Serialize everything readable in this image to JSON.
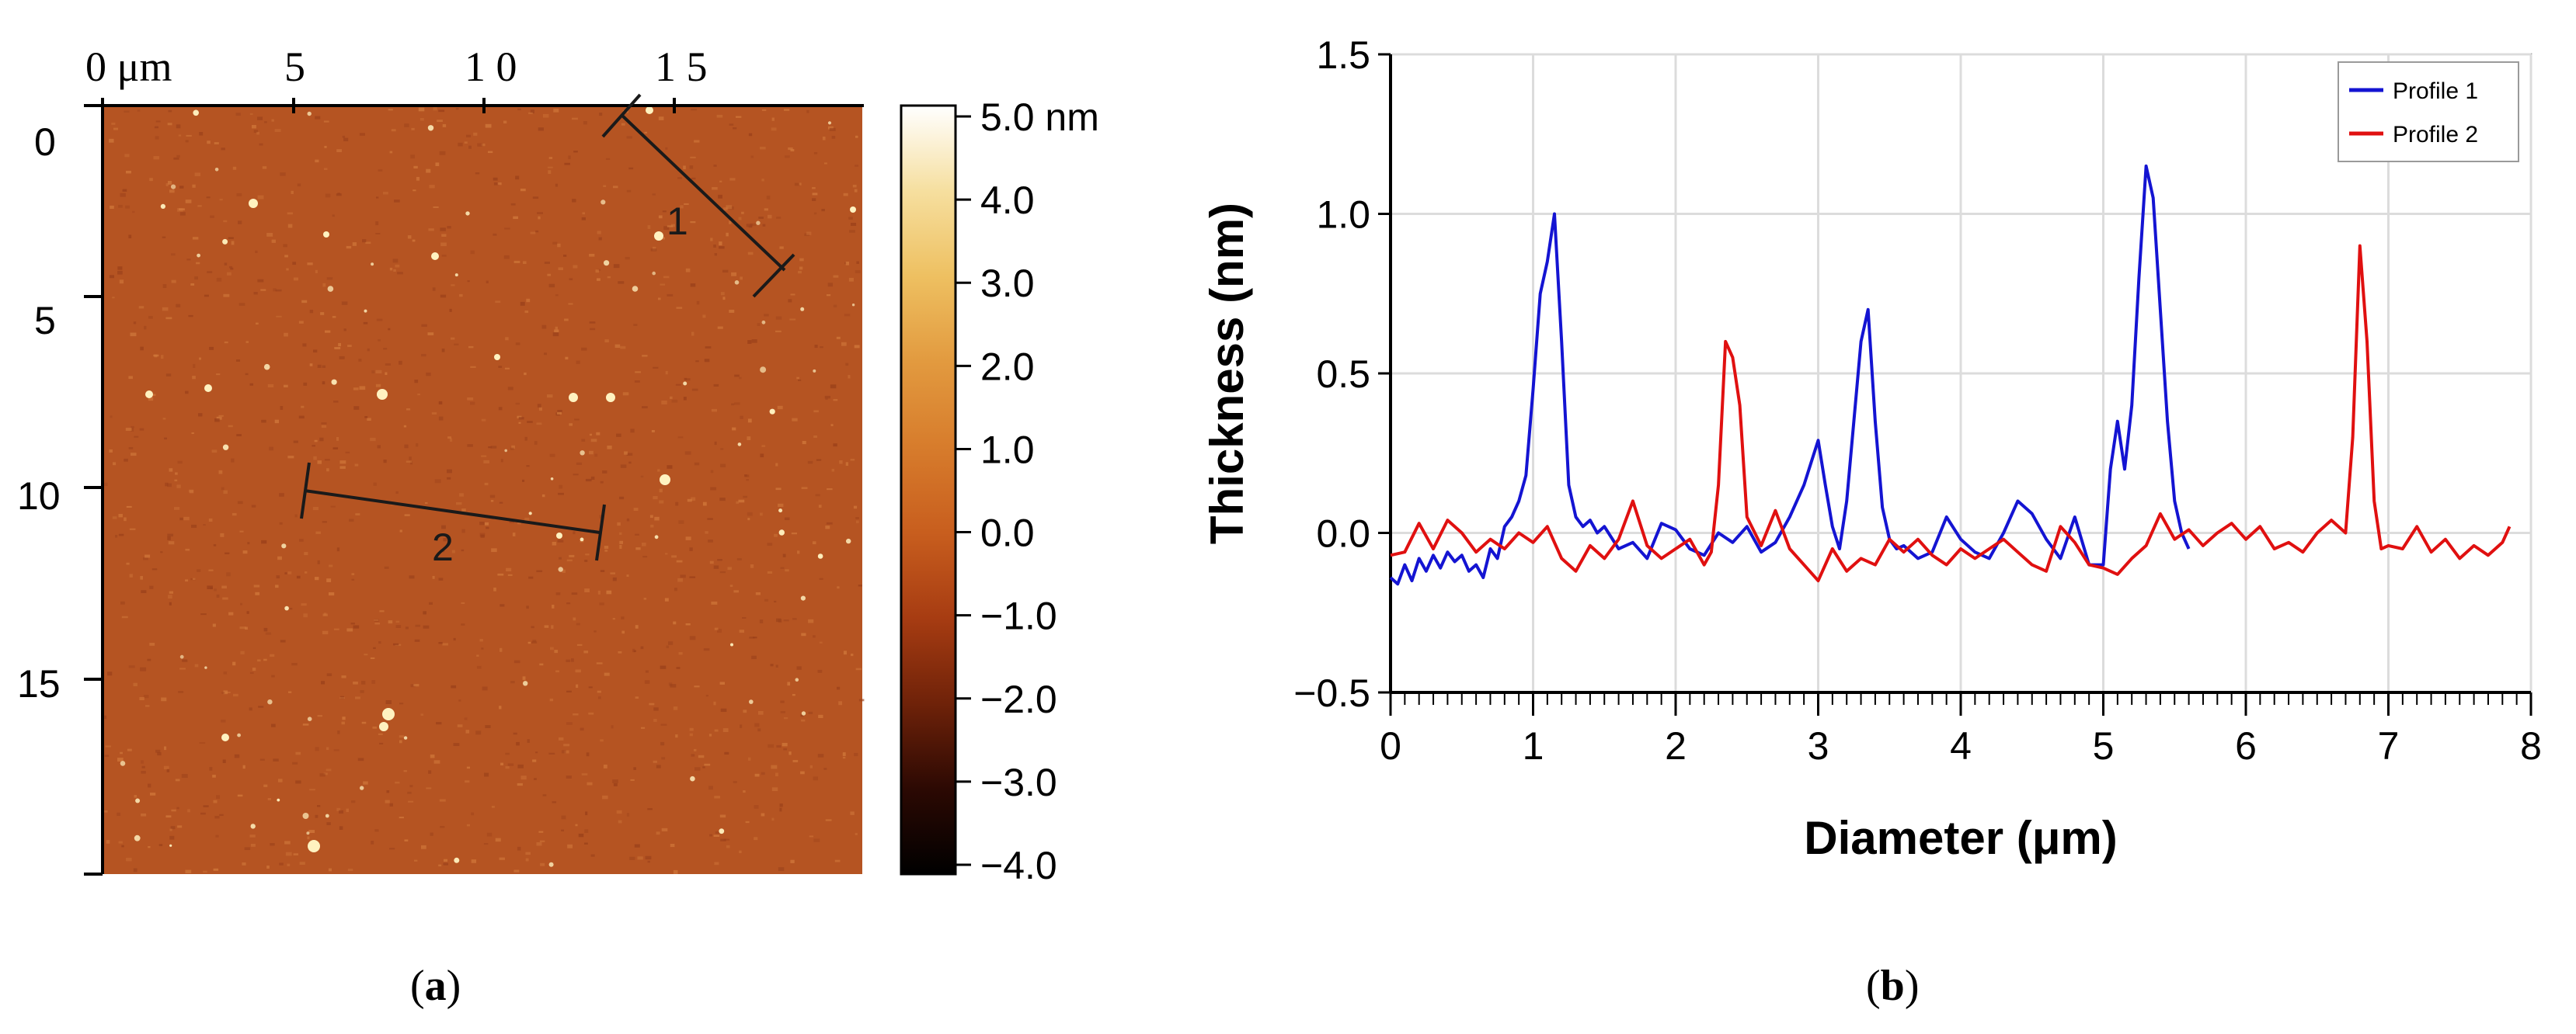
{
  "panel_a": {
    "top_axis_labels": [
      "0 μm",
      "5",
      "1 0",
      "1 5"
    ],
    "left_axis_labels": [
      "0",
      "5",
      "10",
      "15"
    ],
    "line_labels": [
      "1",
      "2"
    ],
    "colorbar": {
      "labels": [
        "5.0 nm",
        "4.0",
        "3.0",
        "2.0",
        "1.0",
        "0.0",
        "−1.0",
        "−2.0",
        "−3.0",
        "−4.0"
      ],
      "stops": [
        "#ffffff",
        "#f6df9f",
        "#eec061",
        "#e29a3f",
        "#d77c2c",
        "#c85e1e",
        "#a73c12",
        "#6f2209",
        "#2c0903",
        "#000000"
      ]
    },
    "image_colors": {
      "base": "#b55422",
      "light": "#d27a3c",
      "dark": "#9a401a",
      "particle": "#fff2c0"
    }
  },
  "captions": {
    "a_open": "(",
    "a_letter": "a",
    "a_close": ")",
    "b_open": "(",
    "b_letter": "b",
    "b_close": ")"
  },
  "chart_data": {
    "type": "line",
    "title": "",
    "xlabel": "Diameter (μm)",
    "ylabel": "Thickness (nm)",
    "xlim": [
      0,
      8
    ],
    "ylim": [
      -0.5,
      1.5
    ],
    "x_ticks": [
      "0",
      "1",
      "2",
      "3",
      "4",
      "5",
      "6",
      "7",
      "8"
    ],
    "y_ticks": [
      "−0.5",
      "0.0",
      "0.5",
      "1.0",
      "1.5"
    ],
    "grid": true,
    "legend_position": "top-right",
    "series": [
      {
        "name": "Profile 1",
        "color": "#1414d2",
        "x": [
          0.0,
          0.05,
          0.1,
          0.15,
          0.2,
          0.25,
          0.3,
          0.35,
          0.4,
          0.45,
          0.5,
          0.55,
          0.6,
          0.65,
          0.7,
          0.75,
          0.8,
          0.85,
          0.9,
          0.95,
          1.0,
          1.05,
          1.1,
          1.15,
          1.2,
          1.25,
          1.3,
          1.35,
          1.4,
          1.45,
          1.5,
          1.6,
          1.7,
          1.8,
          1.9,
          2.0,
          2.1,
          2.2,
          2.3,
          2.4,
          2.5,
          2.6,
          2.7,
          2.8,
          2.9,
          2.95,
          3.0,
          3.05,
          3.1,
          3.15,
          3.2,
          3.25,
          3.3,
          3.35,
          3.4,
          3.45,
          3.5,
          3.55,
          3.6,
          3.7,
          3.8,
          3.9,
          4.0,
          4.1,
          4.2,
          4.3,
          4.4,
          4.5,
          4.6,
          4.7,
          4.8,
          4.9,
          5.0,
          5.05,
          5.1,
          5.15,
          5.2,
          5.25,
          5.3,
          5.35,
          5.4,
          5.45,
          5.5,
          5.55,
          5.6
        ],
        "y": [
          -0.14,
          -0.16,
          -0.1,
          -0.15,
          -0.08,
          -0.12,
          -0.07,
          -0.11,
          -0.06,
          -0.09,
          -0.07,
          -0.12,
          -0.1,
          -0.14,
          -0.05,
          -0.08,
          0.02,
          0.05,
          0.1,
          0.18,
          0.45,
          0.75,
          0.85,
          1.0,
          0.6,
          0.15,
          0.05,
          0.02,
          0.04,
          0.0,
          0.02,
          -0.05,
          -0.03,
          -0.08,
          0.03,
          0.01,
          -0.05,
          -0.07,
          0.0,
          -0.03,
          0.02,
          -0.06,
          -0.03,
          0.05,
          0.15,
          0.22,
          0.29,
          0.15,
          0.02,
          -0.05,
          0.1,
          0.35,
          0.6,
          0.7,
          0.35,
          0.08,
          -0.02,
          -0.05,
          -0.04,
          -0.08,
          -0.06,
          0.05,
          -0.02,
          -0.06,
          -0.08,
          0.0,
          0.1,
          0.06,
          -0.02,
          -0.08,
          0.05,
          -0.1,
          -0.1,
          0.2,
          0.35,
          0.2,
          0.4,
          0.8,
          1.15,
          1.05,
          0.7,
          0.35,
          0.1,
          0.0,
          -0.05
        ]
      },
      {
        "name": "Profile 2",
        "color": "#e01010",
        "x": [
          0.0,
          0.1,
          0.2,
          0.3,
          0.4,
          0.5,
          0.6,
          0.7,
          0.8,
          0.9,
          1.0,
          1.1,
          1.2,
          1.3,
          1.4,
          1.5,
          1.6,
          1.7,
          1.8,
          1.9,
          2.0,
          2.1,
          2.2,
          2.25,
          2.3,
          2.35,
          2.4,
          2.45,
          2.5,
          2.6,
          2.7,
          2.8,
          2.9,
          3.0,
          3.1,
          3.2,
          3.3,
          3.4,
          3.5,
          3.6,
          3.7,
          3.8,
          3.9,
          4.0,
          4.1,
          4.2,
          4.3,
          4.4,
          4.5,
          4.6,
          4.7,
          4.8,
          4.9,
          5.0,
          5.1,
          5.2,
          5.3,
          5.4,
          5.5,
          5.6,
          5.7,
          5.8,
          5.9,
          6.0,
          6.1,
          6.2,
          6.3,
          6.4,
          6.5,
          6.6,
          6.7,
          6.75,
          6.8,
          6.85,
          6.9,
          6.95,
          7.0,
          7.1,
          7.2,
          7.3,
          7.4,
          7.5,
          7.6,
          7.7,
          7.8,
          7.85
        ],
        "y": [
          -0.07,
          -0.06,
          0.03,
          -0.05,
          0.04,
          0.0,
          -0.06,
          -0.02,
          -0.05,
          0.0,
          -0.03,
          0.02,
          -0.08,
          -0.12,
          -0.04,
          -0.08,
          -0.02,
          0.1,
          -0.04,
          -0.08,
          -0.05,
          -0.02,
          -0.1,
          -0.06,
          0.15,
          0.6,
          0.55,
          0.4,
          0.05,
          -0.04,
          0.07,
          -0.05,
          -0.1,
          -0.15,
          -0.05,
          -0.12,
          -0.08,
          -0.1,
          -0.02,
          -0.06,
          -0.02,
          -0.07,
          -0.1,
          -0.05,
          -0.08,
          -0.05,
          -0.02,
          -0.06,
          -0.1,
          -0.12,
          0.02,
          -0.03,
          -0.1,
          -0.11,
          -0.13,
          -0.08,
          -0.04,
          0.06,
          -0.02,
          0.01,
          -0.04,
          0.0,
          0.03,
          -0.02,
          0.02,
          -0.05,
          -0.03,
          -0.06,
          0.0,
          0.04,
          0.0,
          0.3,
          0.9,
          0.6,
          0.1,
          -0.05,
          -0.04,
          -0.05,
          0.02,
          -0.06,
          -0.02,
          -0.08,
          -0.04,
          -0.07,
          -0.03,
          0.02
        ]
      }
    ]
  }
}
